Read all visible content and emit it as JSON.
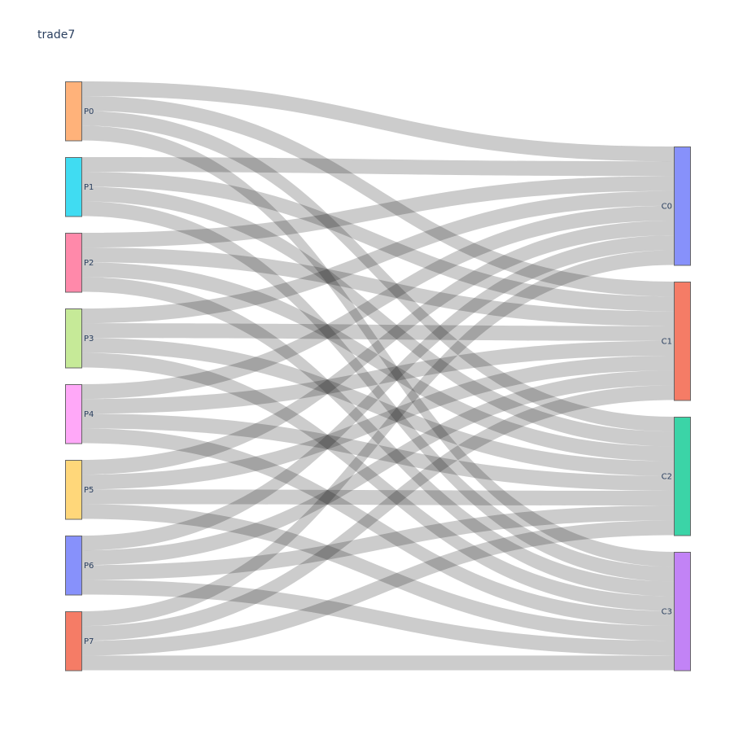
{
  "chart_data": {
    "type": "sankey",
    "title": "trade7",
    "sources": [
      {
        "id": "P0",
        "label": "P0",
        "color": "#ffb27a"
      },
      {
        "id": "P1",
        "label": "P1",
        "color": "#40dcf2"
      },
      {
        "id": "P2",
        "label": "P2",
        "color": "#ff89aa"
      },
      {
        "id": "P3",
        "label": "P3",
        "color": "#c6ea98"
      },
      {
        "id": "P4",
        "label": "P4",
        "color": "#ffa8f8"
      },
      {
        "id": "P5",
        "label": "P5",
        "color": "#ffd77a"
      },
      {
        "id": "P6",
        "label": "P6",
        "color": "#8791fb"
      },
      {
        "id": "P7",
        "label": "P7",
        "color": "#f57c66"
      }
    ],
    "targets": [
      {
        "id": "C0",
        "label": "C0",
        "color": "#8791fb"
      },
      {
        "id": "C1",
        "label": "C1",
        "color": "#f57c66"
      },
      {
        "id": "C2",
        "label": "C2",
        "color": "#3bd4a7"
      },
      {
        "id": "C3",
        "label": "C3",
        "color": "#c283f6"
      }
    ],
    "links": [
      {
        "source": "P0",
        "target": "C0",
        "value": 1
      },
      {
        "source": "P0",
        "target": "C1",
        "value": 1
      },
      {
        "source": "P0",
        "target": "C2",
        "value": 1
      },
      {
        "source": "P0",
        "target": "C3",
        "value": 1
      },
      {
        "source": "P1",
        "target": "C0",
        "value": 1
      },
      {
        "source": "P1",
        "target": "C1",
        "value": 1
      },
      {
        "source": "P1",
        "target": "C2",
        "value": 1
      },
      {
        "source": "P1",
        "target": "C3",
        "value": 1
      },
      {
        "source": "P2",
        "target": "C0",
        "value": 1
      },
      {
        "source": "P2",
        "target": "C1",
        "value": 1
      },
      {
        "source": "P2",
        "target": "C2",
        "value": 1
      },
      {
        "source": "P2",
        "target": "C3",
        "value": 1
      },
      {
        "source": "P3",
        "target": "C0",
        "value": 1
      },
      {
        "source": "P3",
        "target": "C1",
        "value": 1
      },
      {
        "source": "P3",
        "target": "C2",
        "value": 1
      },
      {
        "source": "P3",
        "target": "C3",
        "value": 1
      },
      {
        "source": "P4",
        "target": "C0",
        "value": 1
      },
      {
        "source": "P4",
        "target": "C1",
        "value": 1
      },
      {
        "source": "P4",
        "target": "C2",
        "value": 1
      },
      {
        "source": "P4",
        "target": "C3",
        "value": 1
      },
      {
        "source": "P5",
        "target": "C0",
        "value": 1
      },
      {
        "source": "P5",
        "target": "C1",
        "value": 1
      },
      {
        "source": "P5",
        "target": "C2",
        "value": 1
      },
      {
        "source": "P5",
        "target": "C3",
        "value": 1
      },
      {
        "source": "P6",
        "target": "C0",
        "value": 1
      },
      {
        "source": "P6",
        "target": "C1",
        "value": 1
      },
      {
        "source": "P6",
        "target": "C2",
        "value": 1
      },
      {
        "source": "P6",
        "target": "C3",
        "value": 1
      },
      {
        "source": "P7",
        "target": "C0",
        "value": 1
      },
      {
        "source": "P7",
        "target": "C1",
        "value": 1
      },
      {
        "source": "P7",
        "target": "C2",
        "value": 1
      },
      {
        "source": "P7",
        "target": "C3",
        "value": 1
      }
    ],
    "link_color": "#000000",
    "node_outline_color": "#666666"
  }
}
